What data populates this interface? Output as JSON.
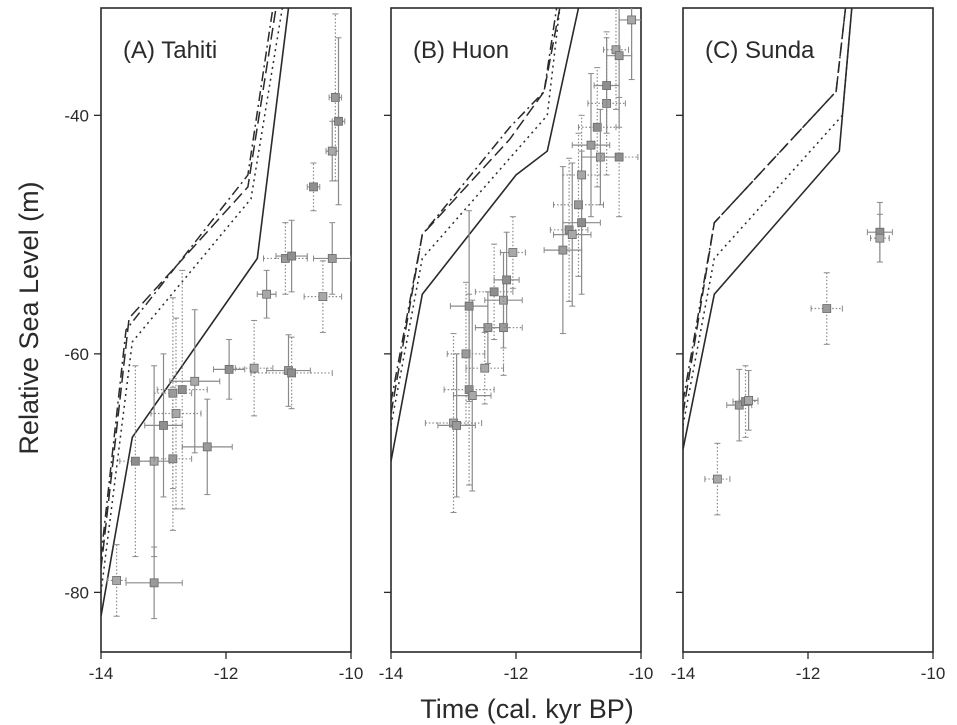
{
  "figure": {
    "xlabel": "Time (cal. kyr BP)",
    "ylabel": "Relative Sea Level (m)"
  },
  "chart_data": [
    {
      "type": "scatter",
      "title": "(A) Tahiti",
      "xlim": [
        -14,
        -10
      ],
      "ylim": [
        -85,
        -31
      ],
      "x_ticks": [
        -14,
        -12,
        -10
      ],
      "y_ticks": [
        -80,
        -60,
        -40
      ],
      "curves": [
        {
          "style": "solid",
          "x": [
            -14.0,
            -13.5,
            -11.5,
            -11.0
          ],
          "y": [
            -82,
            -67,
            -52,
            -31
          ]
        },
        {
          "style": "dashed",
          "x": [
            -14.0,
            -13.55,
            -11.65,
            -11.2
          ],
          "y": [
            -78,
            -57,
            -46,
            -31
          ]
        },
        {
          "style": "dashdot",
          "x": [
            -14.0,
            -13.6,
            -11.65,
            -11.25
          ],
          "y": [
            -77,
            -58,
            -45,
            -31
          ]
        },
        {
          "style": "dotted",
          "x": [
            -14.0,
            -13.5,
            -11.6,
            -11.1
          ],
          "y": [
            -80,
            -59,
            -47,
            -31
          ]
        }
      ],
      "points": [
        {
          "x": -13.75,
          "y": -79.0,
          "xerr": 0.15,
          "yerr": 3.0
        },
        {
          "x": -13.15,
          "y": -79.2,
          "xerr": 0.45,
          "yerr": 3.0
        },
        {
          "x": -13.45,
          "y": -69.0,
          "xerr": 0.25,
          "yerr": 8.0
        },
        {
          "x": -13.15,
          "y": -69.0,
          "xerr": 0.25,
          "yerr": 8.0
        },
        {
          "x": -12.85,
          "y": -68.8,
          "xerr": 0.3,
          "yerr": 6.0
        },
        {
          "x": -13.0,
          "y": -66.0,
          "xerr": 0.3,
          "yerr": 6.0
        },
        {
          "x": -12.8,
          "y": -65.0,
          "xerr": 0.4,
          "yerr": 8.0
        },
        {
          "x": -12.3,
          "y": -67.8,
          "xerr": 0.4,
          "yerr": 4.0
        },
        {
          "x": -12.7,
          "y": -63.0,
          "xerr": 0.4,
          "yerr": 10.0
        },
        {
          "x": -12.5,
          "y": -62.3,
          "xerr": 0.4,
          "yerr": 6.0
        },
        {
          "x": -12.85,
          "y": -63.3,
          "xerr": 0.3,
          "yerr": 8.0
        },
        {
          "x": -11.95,
          "y": -61.3,
          "xerr": 0.25,
          "yerr": 2.5
        },
        {
          "x": -11.55,
          "y": -61.2,
          "xerr": 0.3,
          "yerr": 4.0
        },
        {
          "x": -11.0,
          "y": -61.4,
          "xerr": 0.35,
          "yerr": 3.0
        },
        {
          "x": -10.95,
          "y": -61.6,
          "xerr": 0.65,
          "yerr": 3.0
        },
        {
          "x": -11.35,
          "y": -55.0,
          "xerr": 0.15,
          "yerr": 2.0
        },
        {
          "x": -11.05,
          "y": -52.0,
          "xerr": 0.35,
          "yerr": 3.0
        },
        {
          "x": -10.95,
          "y": -51.8,
          "xerr": 0.25,
          "yerr": 3.0
        },
        {
          "x": -10.45,
          "y": -55.2,
          "xerr": 0.3,
          "yerr": 3.0
        },
        {
          "x": -10.3,
          "y": -52.0,
          "xerr": 0.3,
          "yerr": 3.0
        },
        {
          "x": -10.6,
          "y": -46.0,
          "xerr": 0.1,
          "yerr": 2.0
        },
        {
          "x": -10.3,
          "y": -43.0,
          "xerr": 0.1,
          "yerr": 2.5
        },
        {
          "x": -10.25,
          "y": -38.5,
          "xerr": 0.1,
          "yerr": 7.0
        },
        {
          "x": -10.2,
          "y": -40.5,
          "xerr": 0.1,
          "yerr": 7.0
        }
      ]
    },
    {
      "type": "scatter",
      "title": "(B) Huon",
      "xlim": [
        -14,
        -10
      ],
      "ylim": [
        -85,
        -31
      ],
      "x_ticks": [
        -14,
        -12,
        -10
      ],
      "y_ticks": [
        -80,
        -60,
        -40
      ],
      "curves": [
        {
          "style": "solid",
          "x": [
            -14.0,
            -13.5,
            -12.0,
            -11.5,
            -11.0
          ],
          "y": [
            -69,
            -55,
            -45,
            -43,
            -31
          ]
        },
        {
          "style": "dashed",
          "x": [
            -14.0,
            -13.5,
            -12.1,
            -11.55,
            -11.3
          ],
          "y": [
            -65,
            -50,
            -42,
            -38,
            -31
          ]
        },
        {
          "style": "dashdot",
          "x": [
            -14.0,
            -13.5,
            -12.1,
            -11.55,
            -11.35
          ],
          "y": [
            -64,
            -50,
            -41,
            -38,
            -31
          ]
        },
        {
          "style": "dotted",
          "x": [
            -14.0,
            -13.5,
            -12.0,
            -11.5,
            -11.3
          ],
          "y": [
            -66,
            -52,
            -43,
            -40,
            -31
          ]
        }
      ],
      "points": [
        {
          "x": -13.0,
          "y": -65.8,
          "xerr": 0.45,
          "yerr": 7.5
        },
        {
          "x": -12.95,
          "y": -66.0,
          "xerr": 0.3,
          "yerr": 6.0
        },
        {
          "x": -12.75,
          "y": -63.0,
          "xerr": 0.4,
          "yerr": 8.0
        },
        {
          "x": -12.7,
          "y": -63.5,
          "xerr": 0.3,
          "yerr": 8.0
        },
        {
          "x": -12.8,
          "y": -60.0,
          "xerr": 0.3,
          "yerr": 6.0
        },
        {
          "x": -12.75,
          "y": -56.0,
          "xerr": 0.3,
          "yerr": 8.0
        },
        {
          "x": -12.5,
          "y": -61.2,
          "xerr": 0.3,
          "yerr": 3.0
        },
        {
          "x": -12.45,
          "y": -57.8,
          "xerr": 0.2,
          "yerr": 3.0
        },
        {
          "x": -12.35,
          "y": -54.8,
          "xerr": 0.3,
          "yerr": 4.0
        },
        {
          "x": -12.2,
          "y": -55.5,
          "xerr": 0.3,
          "yerr": 4.0
        },
        {
          "x": -12.2,
          "y": -57.8,
          "xerr": 0.3,
          "yerr": 4.0
        },
        {
          "x": -12.15,
          "y": -53.8,
          "xerr": 0.2,
          "yerr": 4.0
        },
        {
          "x": -12.05,
          "y": -51.5,
          "xerr": 0.2,
          "yerr": 3.0
        },
        {
          "x": -11.25,
          "y": -51.3,
          "xerr": 0.3,
          "yerr": 7.0
        },
        {
          "x": -11.15,
          "y": -49.6,
          "xerr": 0.3,
          "yerr": 6.0
        },
        {
          "x": -11.1,
          "y": -50.0,
          "xerr": 0.3,
          "yerr": 6.0
        },
        {
          "x": -11.0,
          "y": -47.5,
          "xerr": 0.4,
          "yerr": 6.0
        },
        {
          "x": -10.95,
          "y": -49.0,
          "xerr": 0.3,
          "yerr": 6.0
        },
        {
          "x": -10.95,
          "y": -45.0,
          "xerr": 0.3,
          "yerr": 5.0
        },
        {
          "x": -10.8,
          "y": -42.5,
          "xerr": 0.3,
          "yerr": 6.0
        },
        {
          "x": -10.7,
          "y": -41.0,
          "xerr": 0.3,
          "yerr": 5.0
        },
        {
          "x": -10.65,
          "y": -43.5,
          "xerr": 0.3,
          "yerr": 4.0
        },
        {
          "x": -10.55,
          "y": -39.0,
          "xerr": 0.3,
          "yerr": 6.0
        },
        {
          "x": -10.55,
          "y": -37.5,
          "xerr": 0.2,
          "yerr": 4.0
        },
        {
          "x": -10.4,
          "y": -34.5,
          "xerr": 0.2,
          "yerr": 5.0
        },
        {
          "x": -10.35,
          "y": -35.0,
          "xerr": 0.2,
          "yerr": 6.0
        },
        {
          "x": -10.35,
          "y": -43.5,
          "xerr": 0.3,
          "yerr": 5.0
        },
        {
          "x": -10.15,
          "y": -32.0,
          "xerr": 0.2,
          "yerr": 5.0
        }
      ]
    },
    {
      "type": "scatter",
      "title": "(C) Sunda",
      "xlim": [
        -14,
        -10
      ],
      "ylim": [
        -85,
        -31
      ],
      "x_ticks": [
        -14,
        -12,
        -10
      ],
      "y_ticks": [
        -80,
        -60,
        -40
      ],
      "curves": [
        {
          "style": "solid",
          "x": [
            -14.0,
            -13.5,
            -11.5,
            -11.3
          ],
          "y": [
            -68,
            -55,
            -43,
            -31
          ]
        },
        {
          "style": "dashed",
          "x": [
            -14.0,
            -13.5,
            -11.55,
            -11.4
          ],
          "y": [
            -65,
            -49,
            -38,
            -31
          ]
        },
        {
          "style": "dashdot",
          "x": [
            -14.0,
            -13.5,
            -11.55,
            -11.4
          ],
          "y": [
            -64,
            -49,
            -38,
            -31
          ]
        },
        {
          "style": "dotted",
          "x": [
            -14.0,
            -13.5,
            -11.45,
            -11.3
          ],
          "y": [
            -66,
            -52,
            -40,
            -31
          ]
        }
      ],
      "points": [
        {
          "x": -13.45,
          "y": -70.5,
          "xerr": 0.2,
          "yerr": 3.0
        },
        {
          "x": -13.1,
          "y": -64.3,
          "xerr": 0.2,
          "yerr": 3.0
        },
        {
          "x": -13.0,
          "y": -64.0,
          "xerr": 0.2,
          "yerr": 3.0
        },
        {
          "x": -12.95,
          "y": -63.9,
          "xerr": 0.15,
          "yerr": 2.5
        },
        {
          "x": -11.7,
          "y": -56.2,
          "xerr": 0.25,
          "yerr": 3.0
        },
        {
          "x": -10.85,
          "y": -49.8,
          "xerr": 0.2,
          "yerr": 2.5
        },
        {
          "x": -10.85,
          "y": -50.3,
          "xerr": 0.15,
          "yerr": 2.0
        }
      ]
    }
  ]
}
